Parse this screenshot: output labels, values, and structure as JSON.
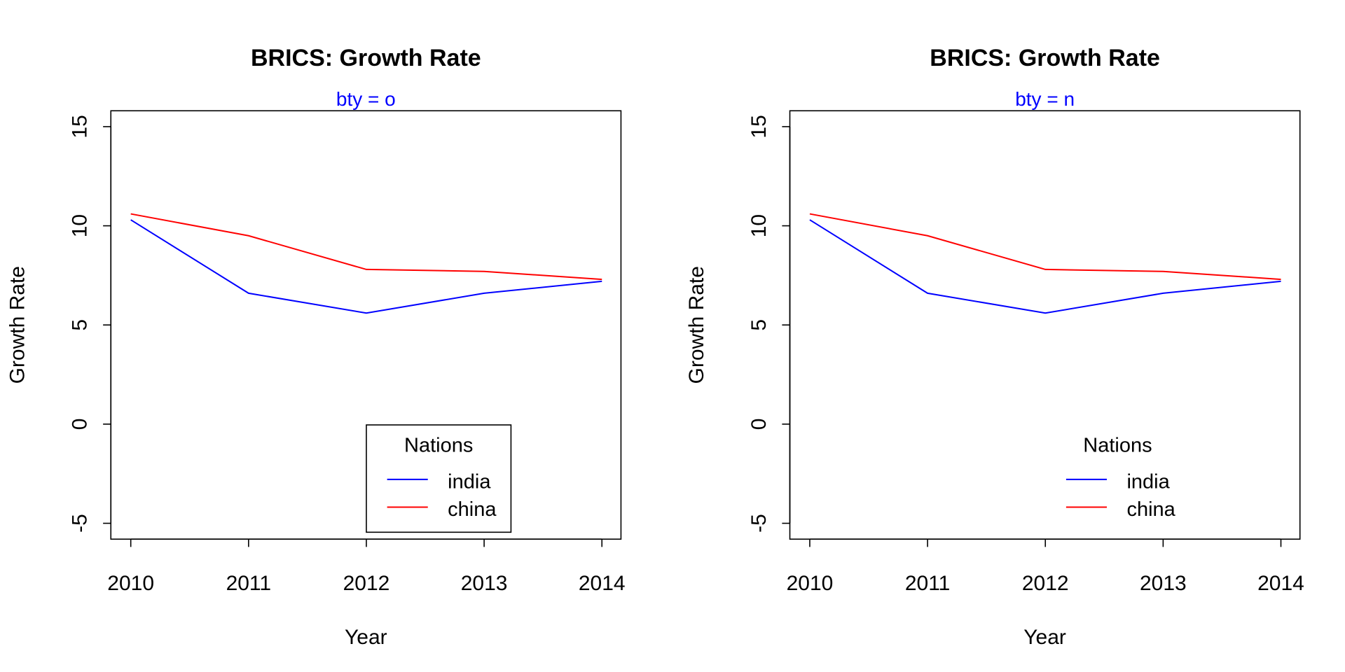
{
  "chart_data": [
    {
      "type": "line",
      "title": "BRICS: Growth Rate",
      "subtitle": "bty =  o",
      "subtitle_color": "#0000FF",
      "xlabel": "Year",
      "ylabel": "Growth Rate",
      "x": [
        2010,
        2011,
        2012,
        2013,
        2014
      ],
      "x_ticks": [
        "2010",
        "2011",
        "2012",
        "2013",
        "2014"
      ],
      "ylim": [
        -5,
        15
      ],
      "y_ticks": [
        "-5",
        "0",
        "5",
        "10",
        "15"
      ],
      "series": [
        {
          "name": "india",
          "color": "#0000FF",
          "values": [
            10.3,
            6.6,
            5.6,
            6.6,
            7.2
          ]
        },
        {
          "name": "china",
          "color": "#FF0000",
          "values": [
            10.6,
            9.5,
            7.8,
            7.7,
            7.3
          ]
        }
      ],
      "legend": {
        "title": "Nations",
        "placement": "bottom-right",
        "box": true
      },
      "grid": false
    },
    {
      "type": "line",
      "title": "BRICS: Growth Rate",
      "subtitle": "bty =  n",
      "subtitle_color": "#0000FF",
      "xlabel": "Year",
      "ylabel": "Growth Rate",
      "x": [
        2010,
        2011,
        2012,
        2013,
        2014
      ],
      "x_ticks": [
        "2010",
        "2011",
        "2012",
        "2013",
        "2014"
      ],
      "ylim": [
        -5,
        15
      ],
      "y_ticks": [
        "-5",
        "0",
        "5",
        "10",
        "15"
      ],
      "series": [
        {
          "name": "india",
          "color": "#0000FF",
          "values": [
            10.3,
            6.6,
            5.6,
            6.6,
            7.2
          ]
        },
        {
          "name": "china",
          "color": "#FF0000",
          "values": [
            10.6,
            9.5,
            7.8,
            7.7,
            7.3
          ]
        }
      ],
      "legend": {
        "title": "Nations",
        "placement": "bottom-right",
        "box": false
      },
      "grid": false
    }
  ]
}
